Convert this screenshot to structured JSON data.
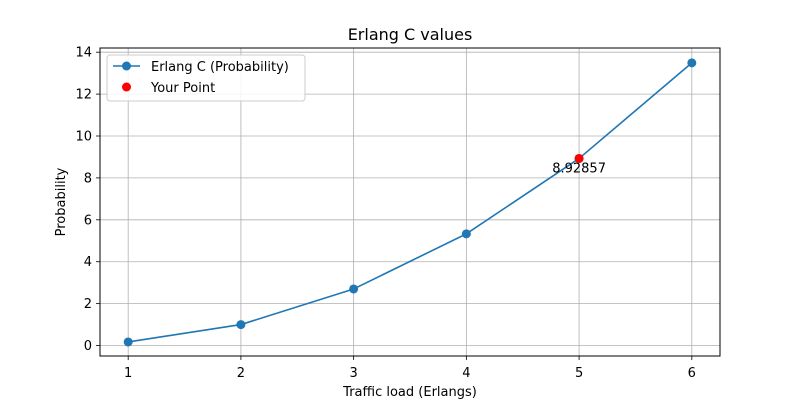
{
  "chart_data": {
    "type": "line",
    "title": "Erlang C values",
    "xlabel": "Traffic load (Erlangs)",
    "ylabel": "Probability",
    "x": [
      1,
      2,
      3,
      4,
      5,
      6
    ],
    "xlim": [
      0.75,
      6.25
    ],
    "ylim": [
      -0.5,
      14.2
    ],
    "xticks": [
      1,
      2,
      3,
      4,
      5,
      6
    ],
    "yticks": [
      0,
      2,
      4,
      6,
      8,
      10,
      12,
      14
    ],
    "grid": true,
    "legend_position": "top-left",
    "series": [
      {
        "name": "Erlang C (Probability)",
        "type": "line",
        "marker": "circle",
        "color": "#1f77b4",
        "x": [
          1,
          2,
          3,
          4,
          5,
          6
        ],
        "values": [
          0.17,
          1.0,
          2.7,
          5.33,
          8.92857,
          13.49
        ]
      },
      {
        "name": "Your Point",
        "type": "scatter",
        "marker": "circle",
        "color": "#ff0000",
        "x": [
          5
        ],
        "values": [
          8.92857
        ]
      }
    ],
    "annotations": [
      {
        "text": "8.92857",
        "x": 5,
        "y": 8.92857
      }
    ]
  }
}
